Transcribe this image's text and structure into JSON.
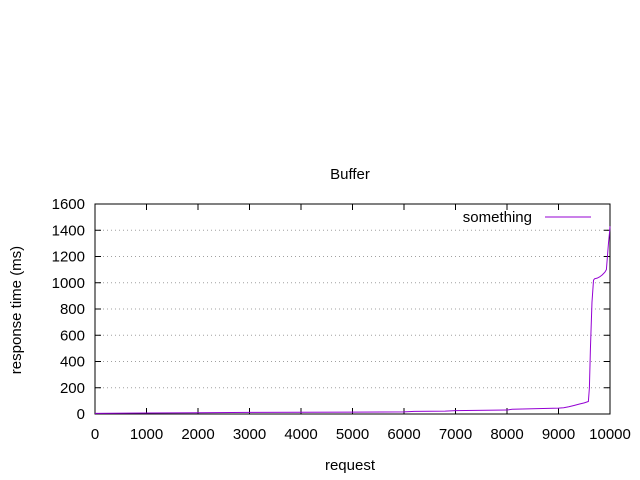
{
  "chart_data": {
    "type": "line",
    "title": "Buffer",
    "xlabel": "request",
    "ylabel": "response time (ms)",
    "xlim": [
      0,
      10000
    ],
    "ylim": [
      0,
      1600
    ],
    "x_ticks": [
      0,
      1000,
      2000,
      3000,
      4000,
      5000,
      6000,
      7000,
      8000,
      9000,
      10000
    ],
    "y_ticks": [
      0,
      200,
      400,
      600,
      800,
      1000,
      1200,
      1400,
      1600
    ],
    "grid": "horizontal-dotted",
    "legend_position": "top-right",
    "series": [
      {
        "name": "something",
        "color": "#9400d3",
        "x": [
          0,
          1000,
          2000,
          3000,
          4000,
          5000,
          6000,
          6200,
          6800,
          7000,
          8000,
          8100,
          8500,
          9000,
          9100,
          9200,
          9300,
          9400,
          9500,
          9580,
          9600,
          9620,
          9650,
          9680,
          9700,
          9750,
          9800,
          9850,
          9900,
          9930,
          9950,
          9970,
          9990,
          10000
        ],
        "y": [
          5,
          8,
          10,
          12,
          13,
          14,
          16,
          20,
          22,
          26,
          30,
          36,
          40,
          45,
          48,
          55,
          65,
          75,
          85,
          95,
          200,
          500,
          850,
          1020,
          1030,
          1035,
          1045,
          1060,
          1080,
          1100,
          1200,
          1300,
          1380,
          1430
        ]
      }
    ]
  }
}
